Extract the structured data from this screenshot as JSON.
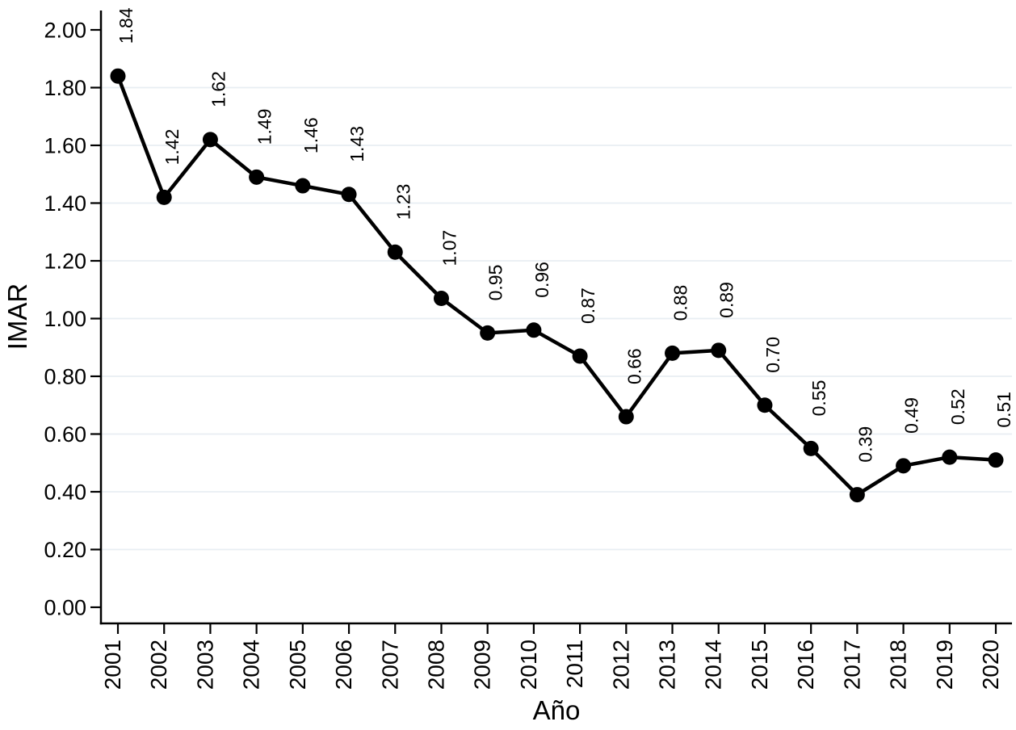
{
  "chart_data": {
    "type": "line",
    "title": "",
    "xlabel": "Año",
    "ylabel": "IMAR",
    "x": [
      2001,
      2002,
      2003,
      2004,
      2005,
      2006,
      2007,
      2008,
      2009,
      2010,
      2011,
      2012,
      2013,
      2014,
      2015,
      2016,
      2017,
      2018,
      2019,
      2020
    ],
    "series": [
      {
        "name": "IMAR",
        "values": [
          1.84,
          1.42,
          1.62,
          1.49,
          1.46,
          1.43,
          1.23,
          1.07,
          0.95,
          0.96,
          0.87,
          0.66,
          0.88,
          0.89,
          0.7,
          0.55,
          0.39,
          0.49,
          0.52,
          0.51
        ]
      }
    ],
    "point_labels": [
      "1.84",
      "1.42",
      "1.62",
      "1.49",
      "1.46",
      "1.43",
      "1.23",
      "1.07",
      "0.95",
      "0.96",
      "0.87",
      "0.66",
      "0.88",
      "0.89",
      "0.70",
      "0.55",
      "0.39",
      "0.49",
      "0.52",
      "0.51"
    ],
    "point_label_angle_deg": 90,
    "xtick_labels": [
      "2001",
      "2002",
      "2003",
      "2004",
      "2005",
      "2006",
      "2007",
      "2008",
      "2009",
      "2010",
      "2011",
      "2012",
      "2013",
      "2014",
      "2015",
      "2016",
      "2017",
      "2018",
      "2019",
      "2020"
    ],
    "xtick_label_angle_deg": 90,
    "ylim": [
      0.0,
      2.0
    ],
    "ytick_values": [
      0.0,
      0.2,
      0.4,
      0.6,
      0.8,
      1.0,
      1.2,
      1.4,
      1.6,
      1.8,
      2.0
    ],
    "ytick_labels": [
      "0.00",
      "0.20",
      "0.40",
      "0.60",
      "0.80",
      "1.00",
      "1.20",
      "1.40",
      "1.60",
      "1.80",
      "2.00"
    ],
    "gridlines_at": [
      0.2,
      0.4,
      0.6,
      0.8,
      1.0,
      1.2,
      1.4,
      1.6,
      1.8
    ],
    "grid": "horizontal",
    "legend": "none",
    "marker": "filled-circle",
    "colors": {
      "line": "#000000",
      "marker": "#000000",
      "axis": "#000000",
      "text": "#000000",
      "grid": "#e8eef3",
      "background": "#ffffff"
    }
  }
}
